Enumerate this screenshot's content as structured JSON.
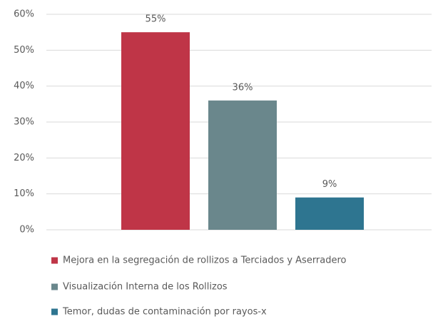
{
  "chart_data": {
    "type": "bar",
    "categories": [
      null
    ],
    "series": [
      {
        "name": "Mejora en la segregación de rollizos a Terciados y Aserradero",
        "color": "#bf3547",
        "values": [
          55
        ],
        "value_labels": [
          "55%"
        ]
      },
      {
        "name": "Visualización Interna de los Rollizos",
        "color": "#6a878c",
        "values": [
          36
        ],
        "value_labels": [
          "36%"
        ]
      },
      {
        "name": "Temor, dudas de contaminación por rayos-x",
        "color": "#2e7590",
        "values": [
          9
        ],
        "value_labels": [
          "9%"
        ]
      }
    ],
    "ylim": [
      0,
      60
    ],
    "yticks": [
      {
        "value": 0,
        "label": "0%"
      },
      {
        "value": 10,
        "label": "10%"
      },
      {
        "value": 20,
        "label": "20%"
      },
      {
        "value": 30,
        "label": "30%"
      },
      {
        "value": 40,
        "label": "40%"
      },
      {
        "value": 50,
        "label": "50%"
      },
      {
        "value": 60,
        "label": "60%"
      }
    ],
    "grid": true,
    "legend": "bottom"
  }
}
